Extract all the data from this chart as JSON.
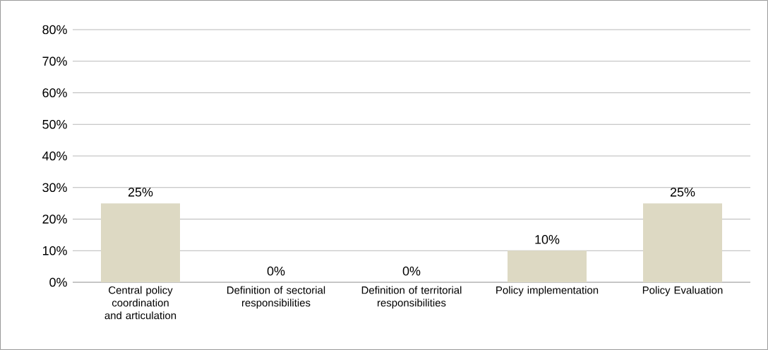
{
  "chart_data": {
    "type": "bar",
    "categories": [
      "Central policy coordination and articulation",
      "Definition of sectorial responsibilities",
      "Definition of territorial responsibilities",
      "Policy implementation",
      "Policy Evaluation"
    ],
    "values": [
      25,
      0,
      0,
      10,
      25
    ],
    "value_labels": [
      "25%",
      "0%",
      "0%",
      "10%",
      "25%"
    ],
    "color": "#ddd9c3",
    "ylim": [
      0,
      80
    ],
    "yticks": [
      {
        "value": 0,
        "label": "0%"
      },
      {
        "value": 10,
        "label": "10%"
      },
      {
        "value": 20,
        "label": "20%"
      },
      {
        "value": 30,
        "label": "30%"
      },
      {
        "value": 40,
        "label": "40%"
      },
      {
        "value": 50,
        "label": "50%"
      },
      {
        "value": 60,
        "label": "60%"
      },
      {
        "value": 70,
        "label": "70%"
      },
      {
        "value": 80,
        "label": "80%"
      }
    ],
    "grid": "y"
  }
}
